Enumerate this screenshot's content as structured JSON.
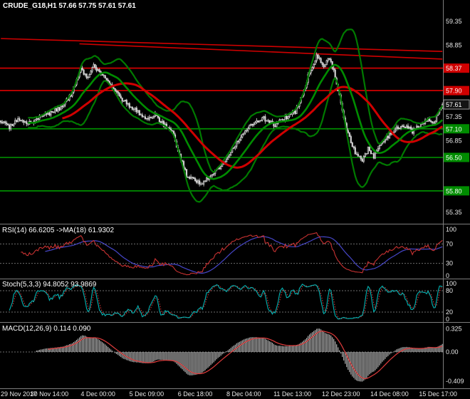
{
  "window": {
    "background": "#000000"
  },
  "chart_data": {
    "type": "candlestick",
    "symbol": "CRUDE_G18",
    "timeframe": "H1",
    "title": "CRUDE_G18,H1 57.66 57.75 57.61 57.61",
    "last_bar": {
      "open": 57.66,
      "high": 57.75,
      "low": 57.61,
      "close": 57.61
    },
    "bars": 310,
    "price_axis": {
      "ylim_top": 59.8,
      "ylim_bottom": 55.13,
      "plain_labels": [
        {
          "text": "59.35",
          "price": 59.35
        },
        {
          "text": "58.85",
          "price": 58.85
        },
        {
          "text": "57.35",
          "price": 57.35
        },
        {
          "text": "56.85",
          "price": 56.85
        },
        {
          "text": "55.35",
          "price": 55.35
        }
      ],
      "tags": [
        {
          "text": "58.37",
          "price": 58.37,
          "bg": "#d00000",
          "fg": "#ffffff"
        },
        {
          "text": "57.90",
          "price": 57.9,
          "bg": "#d00000",
          "fg": "#ffffff"
        },
        {
          "text": "57.61",
          "price": 57.61,
          "bg": "#141414",
          "fg": "#ffffff",
          "border": "#9a9a9a"
        },
        {
          "text": "57.10",
          "price": 57.1,
          "bg": "#008c00",
          "fg": "#ffffff"
        },
        {
          "text": "56.50",
          "price": 56.5,
          "bg": "#008c00",
          "fg": "#ffffff"
        },
        {
          "text": "55.80",
          "price": 55.8,
          "bg": "#008c00",
          "fg": "#ffffff"
        }
      ]
    },
    "time_axis": {
      "ticks": [
        {
          "index": 0,
          "label": "29 Nov 2017"
        },
        {
          "index": 34,
          "label": "30 Nov 14:00"
        },
        {
          "index": 68,
          "label": "4 Dec 00:00"
        },
        {
          "index": 102,
          "label": "5 Dec 09:00"
        },
        {
          "index": 136,
          "label": "6 Dec 18:00"
        },
        {
          "index": 170,
          "label": "8 Dec 04:00"
        },
        {
          "index": 204,
          "label": "11 Dec 13:00"
        },
        {
          "index": 238,
          "label": "12 Dec 23:00"
        },
        {
          "index": 272,
          "label": "14 Dec 08:00"
        },
        {
          "index": 306,
          "label": "15 Dec 17:00"
        }
      ]
    },
    "price_anchors": [
      [
        0,
        57.28
      ],
      [
        6,
        57.12
      ],
      [
        12,
        57.32
      ],
      [
        20,
        57.22
      ],
      [
        28,
        57.38
      ],
      [
        34,
        57.42
      ],
      [
        42,
        57.55
      ],
      [
        50,
        57.85
      ],
      [
        56,
        58.38
      ],
      [
        60,
        58.15
      ],
      [
        65,
        58.42
      ],
      [
        70,
        58.25
      ],
      [
        78,
        57.95
      ],
      [
        88,
        57.62
      ],
      [
        96,
        57.45
      ],
      [
        102,
        57.28
      ],
      [
        108,
        57.38
      ],
      [
        114,
        57.18
      ],
      [
        120,
        57.05
      ],
      [
        125,
        56.55
      ],
      [
        130,
        56.12
      ],
      [
        136,
        56.02
      ],
      [
        141,
        55.95
      ],
      [
        147,
        56.12
      ],
      [
        154,
        56.32
      ],
      [
        161,
        56.6
      ],
      [
        168,
        56.95
      ],
      [
        176,
        57.2
      ],
      [
        184,
        57.32
      ],
      [
        192,
        57.18
      ],
      [
        200,
        57.35
      ],
      [
        206,
        57.45
      ],
      [
        211,
        57.8
      ],
      [
        216,
        58.3
      ],
      [
        221,
        58.62
      ],
      [
        226,
        58.42
      ],
      [
        230,
        58.58
      ],
      [
        234,
        58.2
      ],
      [
        238,
        57.62
      ],
      [
        243,
        56.98
      ],
      [
        248,
        56.6
      ],
      [
        253,
        56.42
      ],
      [
        257,
        56.68
      ],
      [
        261,
        56.52
      ],
      [
        266,
        56.78
      ],
      [
        270,
        56.92
      ],
      [
        276,
        57.08
      ],
      [
        282,
        57.18
      ],
      [
        288,
        57.05
      ],
      [
        294,
        57.2
      ],
      [
        299,
        57.32
      ],
      [
        303,
        57.22
      ],
      [
        306,
        57.42
      ],
      [
        309,
        57.61
      ]
    ],
    "hlines": [
      {
        "price": 58.37,
        "color": "#d00000"
      },
      {
        "price": 57.9,
        "color": "#d00000"
      },
      {
        "price": 57.1,
        "color": "#008c00"
      },
      {
        "price": 56.5,
        "color": "#008c00"
      },
      {
        "price": 55.8,
        "color": "#008c00"
      }
    ],
    "trendlines": [
      {
        "from": [
          0,
          58.99
        ],
        "to": [
          309,
          58.72
        ],
        "color": "#d00000"
      },
      {
        "from": [
          55,
          58.88
        ],
        "to": [
          309,
          58.56
        ],
        "color": "#d00000"
      }
    ],
    "overlays": {
      "bollinger": {
        "period": 20,
        "deviation": 2.2,
        "color": "#007a00"
      },
      "ma_fast": {
        "period": 20,
        "color": "#008c00"
      },
      "ma_slow": {
        "period": 44,
        "color": "#d00000"
      }
    },
    "panels": {
      "rsi": {
        "label": "RSI(14) 66.6205 ->MA(18) 61.9302",
        "period": 14,
        "ma_period": 18,
        "current": 66.6205,
        "ma_current": 61.9302,
        "levels": [
          {
            "text": "100",
            "value": 100
          },
          {
            "text": "70",
            "value": 70
          },
          {
            "text": "30",
            "value": 30
          },
          {
            "text": "0",
            "value": 0
          }
        ],
        "dashed_levels": [
          70,
          30
        ],
        "line_color": "#c83232",
        "ma_color": "#4646c8"
      },
      "stoch": {
        "label": "Stoch(5,3,3) 94.8052 93.9869",
        "k_current": 94.8052,
        "d_current": 93.9869,
        "levels": [
          {
            "text": "100",
            "value": 100
          },
          {
            "text": "80",
            "value": 80
          },
          {
            "text": "20",
            "value": 20
          },
          {
            "text": "0",
            "value": 0
          }
        ],
        "dashed_levels": [
          80,
          20
        ],
        "k_color": "#00b4b4",
        "d_color": "#e03c3c"
      },
      "macd": {
        "label": "MACD(12,26,9) 0.114 0.090",
        "main_current": 0.114,
        "signal_current": 0.09,
        "levels": [
          {
            "text": "0.325",
            "value": 0.325
          },
          {
            "text": "0.00",
            "value": 0
          },
          {
            "text": "-0.409",
            "value": -0.409
          }
        ],
        "dashed_levels": [
          0
        ],
        "hist_color": "#b4b4b4",
        "signal_color": "#e03c3c"
      }
    },
    "colors": {
      "background": "#000000",
      "axis_text": "#e8e8e8",
      "separator": "#7d7d7d",
      "candle": "#d2d2d2"
    }
  }
}
